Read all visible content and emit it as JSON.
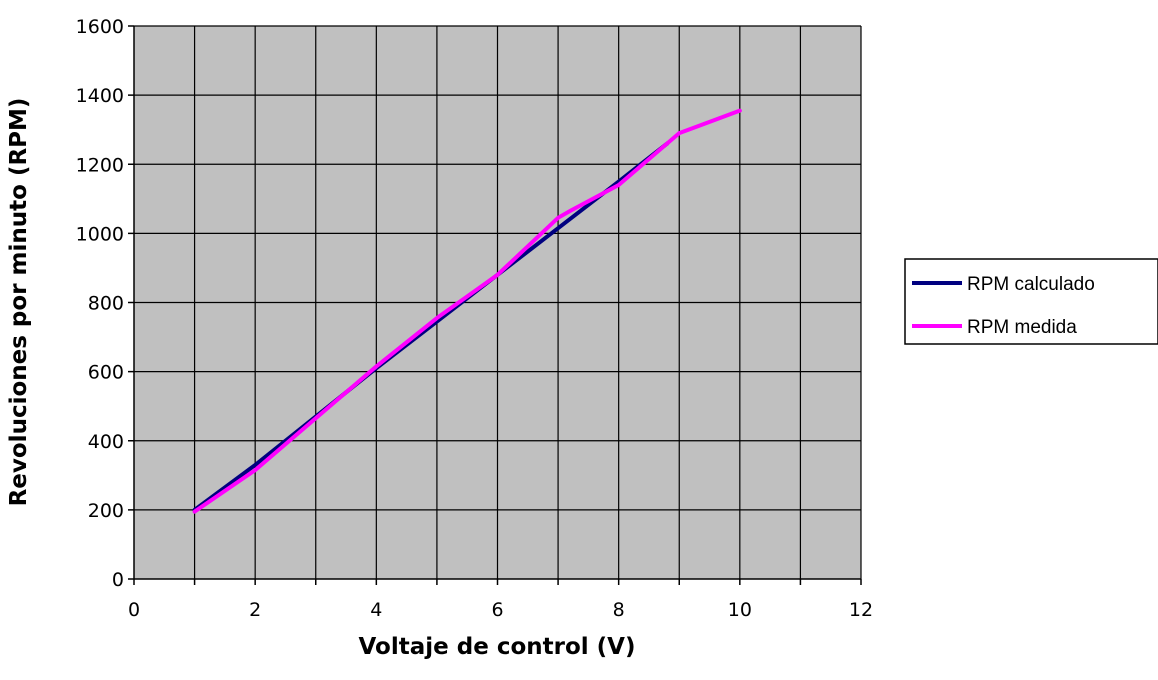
{
  "chart_data": {
    "type": "line",
    "title": "",
    "xlabel": "Voltaje de control (V)",
    "ylabel": "Revoluciones por minuto (RPM)",
    "xlim": [
      0,
      12
    ],
    "ylim": [
      0,
      1600
    ],
    "x_ticks": [
      0,
      2,
      4,
      6,
      8,
      10,
      12
    ],
    "y_ticks": [
      0,
      200,
      400,
      600,
      800,
      1000,
      1200,
      1400,
      1600
    ],
    "x_minor_step": 1,
    "grid": true,
    "plot_background": "#C0C0C0",
    "legend_position": "right",
    "series": [
      {
        "name": "RPM calculado",
        "color": "#000080",
        "x": [
          1,
          2,
          3,
          4,
          5,
          6,
          7,
          8,
          8.8
        ],
        "y": [
          200,
          330,
          470,
          610,
          745,
          880,
          1015,
          1150,
          1260
        ]
      },
      {
        "name": "RPM medida",
        "color": "#FF00FF",
        "x": [
          1,
          2,
          3,
          4,
          5,
          6,
          7,
          7.2,
          8,
          9,
          10
        ],
        "y": [
          195,
          315,
          465,
          615,
          755,
          880,
          1045,
          1065,
          1140,
          1290,
          1355
        ]
      }
    ]
  }
}
